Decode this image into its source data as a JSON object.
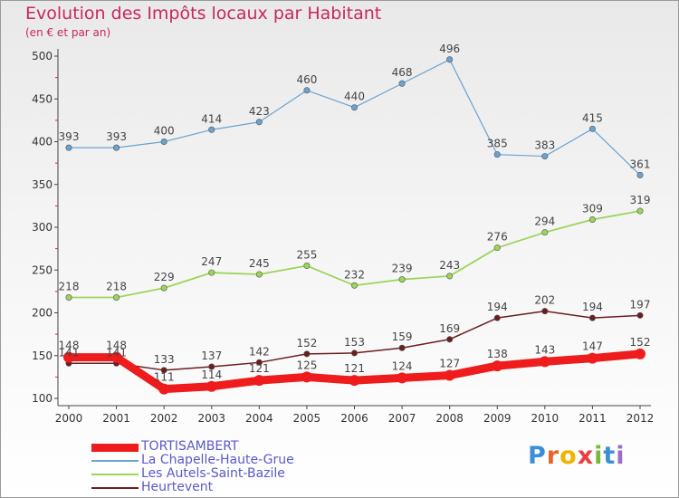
{
  "title": "Evolution des Impôts locaux par Habitant",
  "subtitle": "(en € et par an)",
  "logo": {
    "text": "Proxiti",
    "letter_colors": [
      "#3b8fd6",
      "#e8652a",
      "#f0b400",
      "#e84040",
      "#7ab83c",
      "#3b8fd6",
      "#9a6fc8"
    ]
  },
  "chart_data": {
    "type": "line",
    "x": [
      "2000",
      "2001",
      "2002",
      "2003",
      "2004",
      "2005",
      "2006",
      "2007",
      "2008",
      "2009",
      "2010",
      "2011",
      "2012"
    ],
    "ylim": [
      100,
      500
    ],
    "yticks": [
      100,
      150,
      200,
      250,
      300,
      350,
      400,
      450,
      500
    ],
    "grid": false,
    "series": [
      {
        "name": "TORTISAMBERT",
        "color": "#ee1c1c",
        "values": [
          148,
          148,
          111,
          114,
          121,
          125,
          121,
          124,
          127,
          138,
          143,
          147,
          152
        ]
      },
      {
        "name": "La Chapelle-Haute-Grue",
        "color": "#6ba3cf",
        "values": [
          393,
          393,
          400,
          414,
          423,
          460,
          440,
          468,
          496,
          385,
          383,
          415,
          361
        ]
      },
      {
        "name": "Les Autels-Saint-Bazile",
        "color": "#9dd45a",
        "values": [
          218,
          218,
          229,
          247,
          245,
          255,
          232,
          239,
          243,
          276,
          294,
          309,
          319
        ]
      },
      {
        "name": "Heurtevent",
        "color": "#6b1e1e",
        "values": [
          141,
          141,
          133,
          137,
          142,
          152,
          153,
          159,
          169,
          194,
          202,
          194,
          197
        ]
      }
    ]
  }
}
